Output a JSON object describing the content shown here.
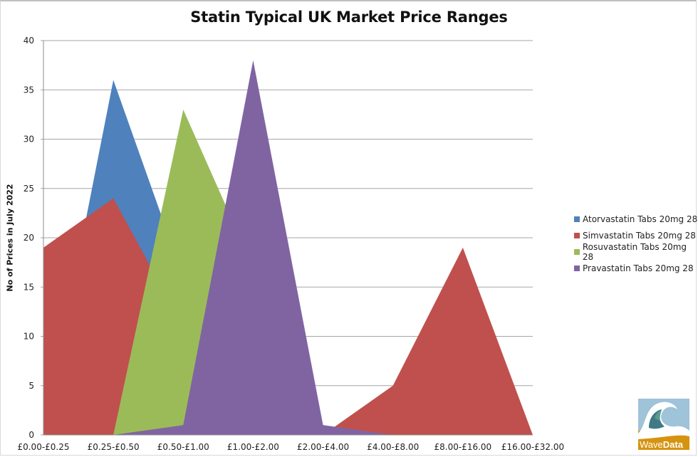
{
  "chart_data": {
    "type": "area",
    "title": "Statin Typical UK Market Price Ranges",
    "xlabel": "",
    "ylabel": "No of Prices in July 2022",
    "ylim": [
      0,
      40
    ],
    "yticks": [
      0,
      5,
      10,
      15,
      20,
      25,
      30,
      35,
      40
    ],
    "grid": true,
    "legend_position": "right",
    "categories": [
      "£0.00-£0.25",
      "£0.25-£0.50",
      "£0.50-£1.00",
      "£1.00-£2.00",
      "£2.00-£4.00",
      "£4.00-£8.00",
      "£8.00-£16.00",
      "£16.00-£32.00"
    ],
    "series": [
      {
        "name": "Atorvastatin Tabs 20mg 28",
        "color": "#4f81bd",
        "values": [
          0,
          36,
          16,
          0,
          0,
          0,
          0,
          0
        ]
      },
      {
        "name": "Simvastatin Tabs 20mg 28",
        "color": "#c0504d",
        "values": [
          19,
          24,
          11,
          0,
          0,
          5,
          19,
          0
        ]
      },
      {
        "name": "Rosuvastatin Tabs 20mg 28",
        "color": "#9bbb59",
        "values": [
          0,
          0,
          33,
          17,
          0,
          0,
          0,
          0
        ]
      },
      {
        "name": "Pravastatin Tabs 20mg 28",
        "color": "#8064a2",
        "values": [
          0,
          0,
          1,
          38,
          1,
          0,
          0,
          0
        ]
      }
    ]
  },
  "chart": {
    "title": "Statin Typical UK Market Price Ranges",
    "ylabel": "No of Prices in July 2022",
    "legend": [
      {
        "label": "Atorvastatin Tabs 20mg 28",
        "color": "#4f81bd"
      },
      {
        "label": "Simvastatin Tabs 20mg 28",
        "color": "#c0504d"
      },
      {
        "label": "Rosuvastatin Tabs 20mg 28",
        "color": "#9bbb59"
      },
      {
        "label": "Pravastatin Tabs 20mg 28",
        "color": "#8064a2"
      }
    ]
  },
  "logo": {
    "text_light": "Wave",
    "text_bold": "Data"
  }
}
